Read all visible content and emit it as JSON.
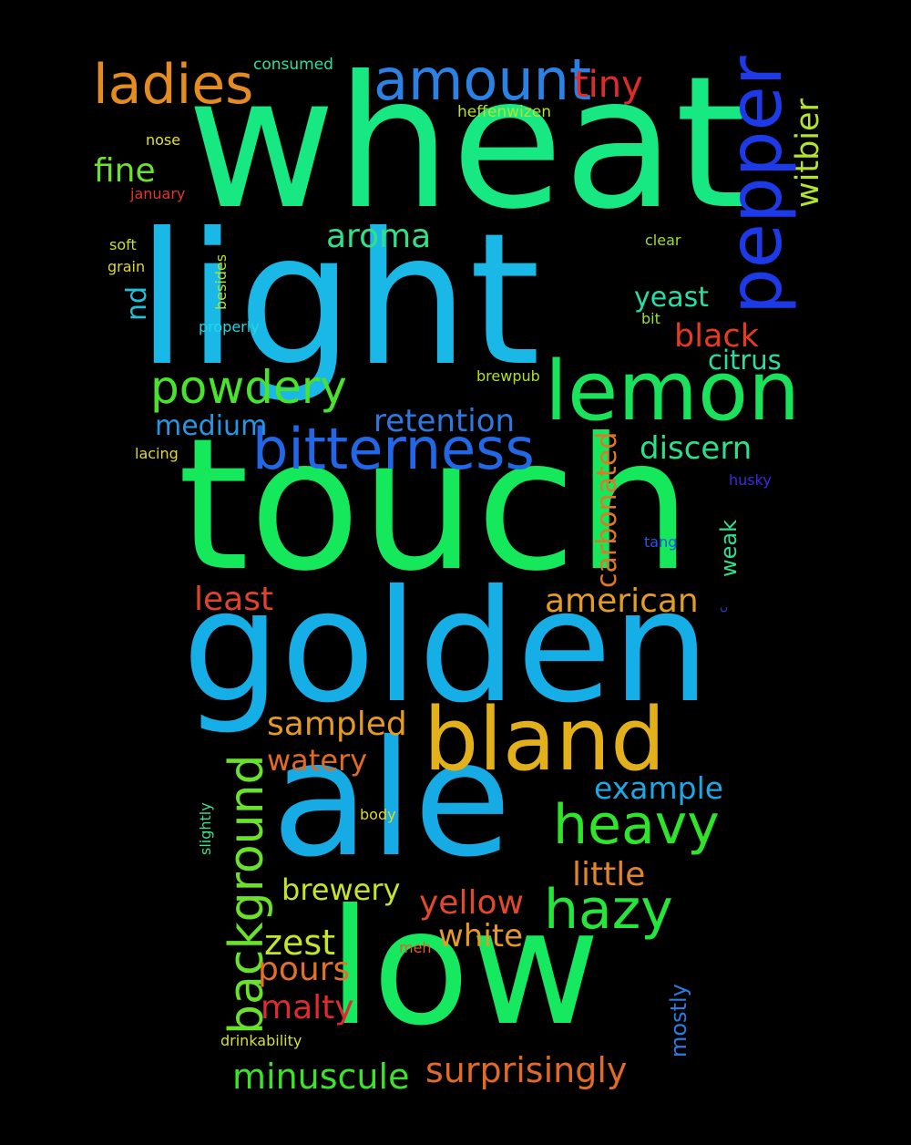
{
  "background": "#000000",
  "words": [
    {
      "text": "wheat",
      "color": "#17e882",
      "weight": 1
    },
    {
      "text": "light",
      "color": "#1ab8e6",
      "weight": 0.93
    },
    {
      "text": "touch",
      "color": "#15e85b",
      "weight": 0.88
    },
    {
      "text": "golden",
      "color": "#16aee6",
      "weight": 0.82
    },
    {
      "text": "ale",
      "color": "#17abe5",
      "weight": 0.78
    },
    {
      "text": "low",
      "color": "#16e85f",
      "weight": 0.75
    },
    {
      "text": "bland",
      "color": "#e2b01b",
      "weight": 0.45
    },
    {
      "text": "lemon",
      "color": "#1ae25a",
      "weight": 0.4
    },
    {
      "text": "pepper",
      "color": "#1c3ae8",
      "weight": 0.38
    },
    {
      "text": "bitterness",
      "color": "#2268e6",
      "weight": 0.34
    },
    {
      "text": "amount",
      "color": "#2a83e4",
      "weight": 0.3
    },
    {
      "text": "ladies",
      "color": "#e48b22",
      "weight": 0.3
    },
    {
      "text": "heavy",
      "color": "#2ee52a",
      "weight": 0.3
    },
    {
      "text": "hazy",
      "color": "#25e63a",
      "weight": 0.3
    },
    {
      "text": "background",
      "color": "#6ae12b",
      "weight": 0.28
    },
    {
      "text": "powdery",
      "color": "#49e22c",
      "weight": 0.25
    },
    {
      "text": "tiny",
      "color": "#e02a2c",
      "weight": 0.2
    },
    {
      "text": "witbier",
      "color": "#b3e42a",
      "weight": 0.18
    },
    {
      "text": "black",
      "color": "#e63c1e",
      "weight": 0.18
    },
    {
      "text": "fine",
      "color": "#6ee22b",
      "weight": 0.18
    },
    {
      "text": "aroma",
      "color": "#33e08a",
      "weight": 0.17
    },
    {
      "text": "retention",
      "color": "#2e78e0",
      "weight": 0.17
    },
    {
      "text": "discern",
      "color": "#2ae189",
      "weight": 0.17
    },
    {
      "text": "yeast",
      "color": "#24dfa7",
      "weight": 0.15
    },
    {
      "text": "citrus",
      "color": "#25dfa3",
      "weight": 0.15
    },
    {
      "text": "medium",
      "color": "#2597e3",
      "weight": 0.15
    },
    {
      "text": "nd",
      "color": "#1fc2dd",
      "weight": 0.15
    },
    {
      "text": "carbonated",
      "color": "#e0762a",
      "weight": 0.15
    },
    {
      "text": "least",
      "color": "#e0432a",
      "weight": 0.17
    },
    {
      "text": "american",
      "color": "#e49d24",
      "weight": 0.17
    },
    {
      "text": "sampled",
      "color": "#e49a24",
      "weight": 0.17
    },
    {
      "text": "watery",
      "color": "#e26a25",
      "weight": 0.17
    },
    {
      "text": "example",
      "color": "#20a6e2",
      "weight": 0.17
    },
    {
      "text": "little",
      "color": "#e38428",
      "weight": 0.17
    },
    {
      "text": "brewery",
      "color": "#c6e52a",
      "weight": 0.17
    },
    {
      "text": "yellow",
      "color": "#e2482a",
      "weight": 0.17
    },
    {
      "text": "white",
      "color": "#e49a25",
      "weight": 0.17
    },
    {
      "text": "zest",
      "color": "#c3e52a",
      "weight": 0.17
    },
    {
      "text": "pours",
      "color": "#e2702a",
      "weight": 0.17
    },
    {
      "text": "malty",
      "color": "#e02a32",
      "weight": 0.17
    },
    {
      "text": "minuscule",
      "color": "#3de22c",
      "weight": 0.17
    },
    {
      "text": "surprisingly",
      "color": "#e26a28",
      "weight": 0.17
    },
    {
      "text": "weak",
      "color": "#2de28a",
      "weight": 0.12
    },
    {
      "text": "mostly",
      "color": "#2a7ce3",
      "weight": 0.12
    },
    {
      "text": "consumed",
      "color": "#2ae0a0",
      "weight": 0.08
    },
    {
      "text": "heffenwizen",
      "color": "#b6e22b",
      "weight": 0.08
    },
    {
      "text": "nose",
      "color": "#e3e02b",
      "weight": 0.08
    },
    {
      "text": "january",
      "color": "#e2362a",
      "weight": 0.08
    },
    {
      "text": "soft",
      "color": "#c4e02a",
      "weight": 0.08
    },
    {
      "text": "grain",
      "color": "#e0d82a",
      "weight": 0.08
    },
    {
      "text": "besides",
      "color": "#b6e22a",
      "weight": 0.08
    },
    {
      "text": "properly",
      "color": "#22d6e2",
      "weight": 0.08
    },
    {
      "text": "clear",
      "color": "#9ee02a",
      "weight": 0.08
    },
    {
      "text": "bit",
      "color": "#9ae02a",
      "weight": 0.08
    },
    {
      "text": "brewpub",
      "color": "#b0e02a",
      "weight": 0.08
    },
    {
      "text": "lacing",
      "color": "#e0d82a",
      "weight": 0.08
    },
    {
      "text": "husky",
      "color": "#3a2ae2",
      "weight": 0.08
    },
    {
      "text": "tang",
      "color": "#2a54e2",
      "weight": 0.08
    },
    {
      "text": "c",
      "color": "#2a40e2",
      "weight": 0.05
    },
    {
      "text": "slightly",
      "color": "#3ee08a",
      "weight": 0.08
    },
    {
      "text": "body",
      "color": "#e0d82a",
      "weight": 0.08
    },
    {
      "text": "meh",
      "color": "#e0622a",
      "weight": 0.08
    },
    {
      "text": "drinkability",
      "color": "#d6e02a",
      "weight": 0.08
    }
  ]
}
